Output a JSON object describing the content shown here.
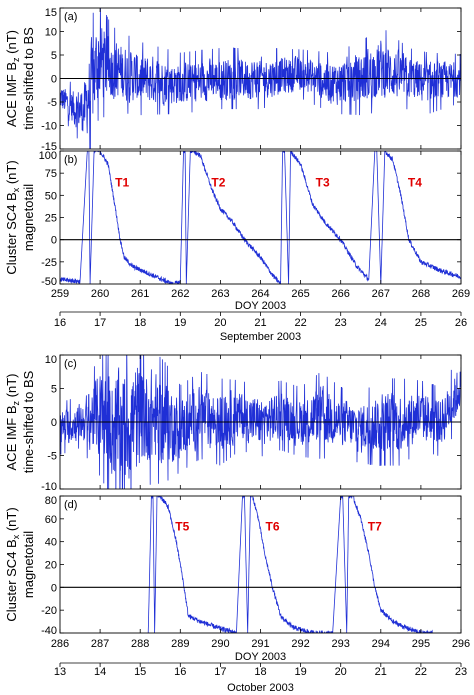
{
  "chart_data": [
    {
      "block": "September 2003",
      "xlabel": "DOY 2003",
      "date_label": "September 2003",
      "doy_ticks": [
        259,
        260,
        261,
        262,
        263,
        264,
        265,
        266,
        267,
        268,
        269
      ],
      "day_ticks": [
        "16",
        "17",
        "18",
        "19",
        "20",
        "21",
        "22",
        "23",
        "24",
        "25",
        "26"
      ],
      "panels": [
        {
          "id": "a",
          "panel_label": "(a)",
          "type": "line",
          "ylabel_lines": [
            "ACE IMF B_z (nT)",
            "time-shifted to BS"
          ],
          "ylabel_1_main": "ACE IMF B",
          "ylabel_1_sub": "z",
          "ylabel_1_tail": " (nT)",
          "ylabel_2": "time-shifted to BS",
          "ylim": [
            -15,
            15
          ],
          "yticks": [
            15,
            10,
            5,
            0,
            -5,
            -10,
            -15
          ],
          "zero_line": true,
          "series_color": "#1f2fd6",
          "series": [
            {
              "x": [
                259,
                259.3,
                259.6,
                259.8,
                259.95,
                260.3,
                261.0,
                262.0,
                263.0,
                264.0,
                265.0,
                265.8,
                266.5,
                267.0,
                267.7,
                268.2,
                269.0
              ],
              "y_center": [
                -4,
                -6,
                -7,
                -1,
                4,
                2,
                0,
                -1,
                0,
                0,
                1,
                -1,
                0,
                2,
                0,
                -1,
                0
              ],
              "amplitude": [
                3,
                4,
                6,
                11,
                10,
                7,
                6,
                5,
                5,
                5,
                4,
                5,
                6,
                7,
                5,
                5,
                4
              ]
            }
          ],
          "annotations": []
        },
        {
          "id": "b",
          "panel_label": "(b)",
          "type": "line",
          "ylabel_lines": [
            "Cluster SC4 B_x (nT)",
            "magnetotail"
          ],
          "ylabel_1_main": "Cluster SC4 B",
          "ylabel_1_sub": "x",
          "ylabel_1_tail": " (nT)",
          "ylabel_2": "magnetotail",
          "ylim": [
            -50,
            100
          ],
          "yticks": [
            100,
            75,
            50,
            25,
            0,
            -25,
            -50
          ],
          "zero_line": true,
          "series_color": "#1f2fd6",
          "series": [
            {
              "x": [
                259.0,
                259.5,
                259.68,
                259.72,
                259.75,
                259.85,
                259.9,
                260.0,
                260.2,
                260.4,
                260.5,
                260.6,
                260.8,
                261.2,
                261.8,
                262.0,
                262.08,
                262.12,
                262.15,
                262.25,
                262.3,
                262.5,
                262.8,
                263.0,
                263.3,
                263.6,
                264.0,
                264.3,
                264.5,
                264.55,
                264.6,
                264.7,
                264.75,
                265.0,
                265.3,
                265.6,
                266.0,
                266.4,
                266.7,
                266.85,
                266.9,
                267.0,
                267.1,
                267.3,
                267.5,
                267.7,
                268.0,
                268.5,
                269.0
              ],
              "y": [
                -45,
                -47,
                100,
                100,
                -50,
                100,
                100,
                100,
                85,
                30,
                0,
                -20,
                -30,
                -38,
                -50,
                -48,
                100,
                100,
                -50,
                100,
                100,
                95,
                55,
                35,
                20,
                0,
                -20,
                -40,
                -50,
                100,
                100,
                -50,
                100,
                85,
                40,
                20,
                0,
                -30,
                -45,
                100,
                100,
                -50,
                100,
                90,
                50,
                0,
                -25,
                -35,
                -42
              ]
            }
          ],
          "annotations": [
            {
              "text": "T1",
              "x": 260.55,
              "y": 60
            },
            {
              "text": "T2",
              "x": 262.95,
              "y": 60
            },
            {
              "text": "T3",
              "x": 265.55,
              "y": 60
            },
            {
              "text": "T4",
              "x": 267.85,
              "y": 60
            }
          ]
        }
      ]
    },
    {
      "block": "October 2003",
      "xlabel": "DOY 2003",
      "date_label": "October 2003",
      "doy_ticks": [
        286,
        287,
        288,
        289,
        290,
        291,
        292,
        293,
        294,
        295,
        296
      ],
      "day_ticks": [
        "13",
        "14",
        "15",
        "16",
        "17",
        "18",
        "19",
        "20",
        "21",
        "22",
        "23"
      ],
      "panels": [
        {
          "id": "c",
          "panel_label": "(c)",
          "type": "line",
          "ylabel_lines": [
            "ACE IMF B_z (nT)",
            "time-shifted to BS"
          ],
          "ylabel_1_main": "ACE IMF B",
          "ylabel_1_sub": "z",
          "ylabel_1_tail": " (nT)",
          "ylabel_2": "time-shifted to BS",
          "ylim": [
            -10,
            10
          ],
          "yticks": [
            10,
            5,
            0,
            -5,
            -10
          ],
          "zero_line": true,
          "series_color": "#1f2fd6",
          "series": [
            {
              "x": [
                286.0,
                286.5,
                287.0,
                287.4,
                287.8,
                288.2,
                288.6,
                289.0,
                289.5,
                290.0,
                290.5,
                291.0,
                291.5,
                292.0,
                292.5,
                293.0,
                293.5,
                294.0,
                294.5,
                295.0,
                295.5,
                295.9,
                296.0
              ],
              "y_center": [
                -1,
                0,
                1,
                -1,
                0,
                1,
                0,
                -1,
                1,
                0,
                1,
                0,
                1,
                0,
                1,
                0,
                -1,
                0,
                0,
                1,
                0,
                4,
                6
              ],
              "amplitude": [
                3,
                3,
                7,
                9,
                10,
                8,
                7,
                5,
                5,
                5,
                4,
                4,
                4,
                4,
                5,
                4,
                4,
                5,
                5,
                4,
                4,
                4,
                3
              ]
            }
          ],
          "annotations": []
        },
        {
          "id": "d",
          "panel_label": "(d)",
          "type": "line",
          "ylabel_lines": [
            "Cluster SC4 B_x (nT)",
            "magnetotail"
          ],
          "ylabel_1_main": "Cluster SC4 B",
          "ylabel_1_sub": "x",
          "ylabel_1_tail": " (nT)",
          "ylabel_2": "magnetotail",
          "ylim": [
            -40,
            80
          ],
          "yticks": [
            80,
            60,
            40,
            20,
            0,
            -20,
            -40
          ],
          "zero_line": true,
          "series_color": "#1f2fd6",
          "series": [
            {
              "x": [
                288.2,
                288.28,
                288.32,
                288.36,
                288.42,
                288.5,
                288.7,
                288.9,
                289.05,
                289.2,
                289.5,
                289.9,
                290.4,
                290.55,
                290.6,
                290.68,
                290.75,
                290.8,
                290.95,
                291.1,
                291.3,
                291.5,
                291.8,
                292.3,
                292.8,
                293.0,
                293.05,
                293.15,
                293.2,
                293.3,
                293.5,
                293.7,
                293.85,
                294.0,
                294.3,
                294.6,
                295.0,
                295.3
              ],
              "y": [
                -40,
                80,
                80,
                -40,
                80,
                80,
                70,
                40,
                10,
                -25,
                -30,
                -35,
                -40,
                80,
                80,
                -40,
                80,
                80,
                60,
                30,
                0,
                -25,
                -35,
                -40,
                -40,
                80,
                80,
                -40,
                80,
                80,
                60,
                30,
                0,
                -20,
                -30,
                -35,
                -40,
                -40
              ]
            }
          ],
          "annotations": [
            {
              "text": "T5",
              "x": 289.05,
              "y": 50
            },
            {
              "text": "T6",
              "x": 291.3,
              "y": 50
            },
            {
              "text": "T7",
              "x": 293.85,
              "y": 50
            }
          ]
        }
      ]
    }
  ]
}
